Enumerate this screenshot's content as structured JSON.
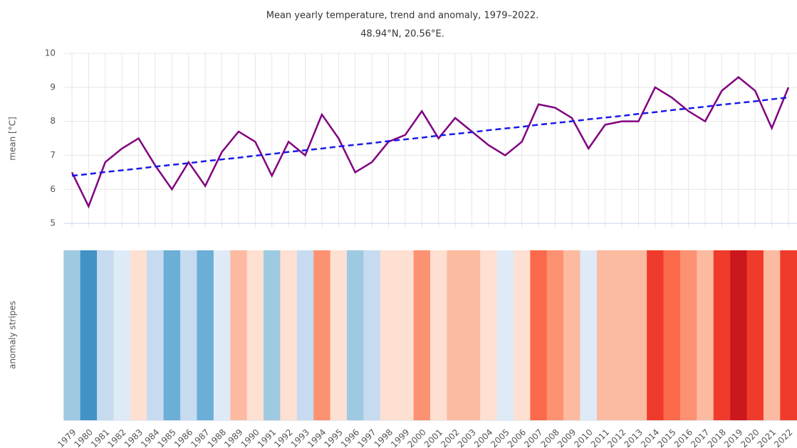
{
  "chart_data": {
    "type": "line",
    "title": "Mean yearly temperature, trend and anomaly, 1979–2022.",
    "subtitle": "48.94°N, 20.56°E.",
    "y_label": "mean [°C]",
    "y2_label": "anomaly stripes",
    "x": [
      1979,
      1980,
      1981,
      1982,
      1983,
      1984,
      1985,
      1986,
      1987,
      1988,
      1989,
      1990,
      1991,
      1992,
      1993,
      1994,
      1995,
      1996,
      1997,
      1998,
      1999,
      2000,
      2001,
      2002,
      2003,
      2004,
      2005,
      2006,
      2007,
      2008,
      2009,
      2010,
      2011,
      2012,
      2013,
      2014,
      2015,
      2016,
      2017,
      2018,
      2019,
      2020,
      2021,
      2022
    ],
    "series": [
      {
        "color": "#800080",
        "dash": false,
        "values": [
          6.5,
          5.5,
          6.8,
          7.2,
          7.5,
          6.7,
          6.0,
          6.8,
          6.1,
          7.1,
          7.7,
          7.4,
          6.4,
          7.4,
          7.0,
          8.2,
          7.5,
          6.5,
          6.8,
          7.4,
          7.6,
          8.3,
          7.5,
          8.1,
          7.7,
          7.3,
          7.0,
          7.4,
          8.5,
          8.4,
          8.1,
          7.2,
          7.9,
          8.0,
          8.0,
          9.0,
          8.7,
          8.3,
          8.0,
          8.9,
          9.3,
          8.9,
          7.8,
          9.0
        ]
      },
      {
        "color": "#1a1aeb",
        "dash": true,
        "values": [
          6.4,
          6.45,
          6.51,
          6.56,
          6.61,
          6.67,
          6.72,
          6.77,
          6.83,
          6.88,
          6.93,
          6.99,
          7.04,
          7.1,
          7.15,
          7.2,
          7.26,
          7.31,
          7.36,
          7.42,
          7.47,
          7.52,
          7.58,
          7.63,
          7.68,
          7.74,
          7.79,
          7.84,
          7.9,
          7.95,
          8.0,
          8.06,
          8.11,
          8.16,
          8.22,
          8.27,
          8.33,
          8.38,
          8.43,
          8.49,
          8.54,
          8.59,
          8.65,
          8.7
        ]
      }
    ],
    "stripe_colors": [
      "#9ecae1",
      "#4292c6",
      "#c6dbef",
      "#deebf7",
      "#fee0d2",
      "#c6dbef",
      "#6baed6",
      "#c6dbef",
      "#6baed6",
      "#deebf7",
      "#fcbba1",
      "#fee0d2",
      "#9ecae1",
      "#fee0d2",
      "#c6dbef",
      "#fc9272",
      "#fee0d2",
      "#9ecae1",
      "#c6dbef",
      "#fee0d2",
      "#fee0d2",
      "#fc9272",
      "#fee0d2",
      "#fcbba1",
      "#fcbba1",
      "#fee0d2",
      "#deebf7",
      "#fee0d2",
      "#fb6a4a",
      "#fc9272",
      "#fcbba1",
      "#deebf7",
      "#fcbba1",
      "#fcbba1",
      "#fcbba1",
      "#ef3b2c",
      "#fb6a4a",
      "#fc9272",
      "#fcbba1",
      "#ef3b2c",
      "#cb181d",
      "#ef3b2c",
      "#fcbba1",
      "#ef3b2c"
    ],
    "ylim": [
      4.5,
      10
    ],
    "yticks": [
      5,
      6,
      7,
      8,
      9,
      10
    ],
    "grid": true
  }
}
